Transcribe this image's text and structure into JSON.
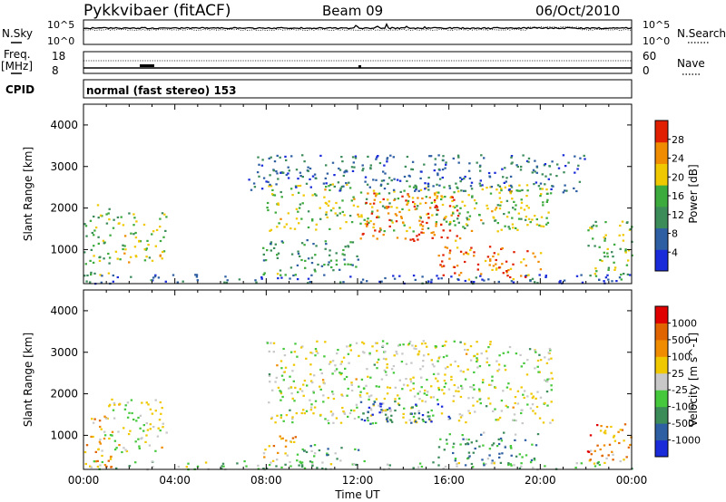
{
  "header": {
    "station": "Pykkvibaer (fitACF)",
    "beam": "Beam 09",
    "date": "06/Oct/2010"
  },
  "strip_noise": {
    "left_label": "N.Sky",
    "right_label": "N.Search",
    "left_ticks": [
      "10^5",
      "10^0"
    ],
    "right_ticks": [
      "10^5",
      "10^0"
    ]
  },
  "strip_freq": {
    "left_label_1": "Freq.",
    "left_label_2": "[MHz]",
    "left_ticks": [
      "18",
      "8"
    ],
    "right_label": "Nave",
    "right_ticks": [
      "60",
      "0"
    ]
  },
  "cpid": {
    "label": "CPID",
    "text": "normal (fast stereo) 153"
  },
  "axes": {
    "ylabel": "Slant Range [km]",
    "xlabel": "Time UT",
    "y_ticks": [
      "1000",
      "2000",
      "3000",
      "4000"
    ],
    "x_ticks": [
      "00:00",
      "04:00",
      "08:00",
      "12:00",
      "16:00",
      "20:00",
      "00:00"
    ]
  },
  "chart_data": [
    {
      "type": "heatmap",
      "variable": "Power",
      "colorbar_label": "Power [dB]",
      "colorbar_ticks": [
        "4",
        "8",
        "12",
        "16",
        "20",
        "24",
        "28"
      ],
      "colors": [
        "#1a2bd9",
        "#2e5fa3",
        "#3c8c5a",
        "#3caa3c",
        "#f0c800",
        "#f08c00",
        "#e02000"
      ],
      "xlim_hours": [
        0,
        24
      ],
      "ylim_km": [
        180,
        4500
      ],
      "regions": [
        {
          "t0": 0.0,
          "t1": 1.2,
          "r0": 250,
          "r1": 2100,
          "level": 0.45
        },
        {
          "t0": 1.2,
          "t1": 3.6,
          "r0": 700,
          "r1": 1900,
          "level": 0.55
        },
        {
          "t0": 0.2,
          "t1": 24.0,
          "r0": 200,
          "r1": 420,
          "level": 0.2
        },
        {
          "t0": 7.8,
          "t1": 12.0,
          "r0": 380,
          "r1": 1250,
          "level": 0.4
        },
        {
          "t0": 8.0,
          "t1": 20.5,
          "r0": 1450,
          "r1": 2600,
          "level": 0.55
        },
        {
          "t0": 12.0,
          "t1": 16.5,
          "r0": 1200,
          "r1": 2400,
          "level": 0.85
        },
        {
          "t0": 15.5,
          "t1": 20.0,
          "r0": 300,
          "r1": 1100,
          "level": 0.8
        },
        {
          "t0": 7.2,
          "t1": 22.0,
          "r0": 2400,
          "r1": 3300,
          "level": 0.25
        },
        {
          "t0": 22.0,
          "t1": 24.0,
          "r0": 300,
          "r1": 1700,
          "level": 0.5
        }
      ]
    },
    {
      "type": "heatmap",
      "variable": "Velocity",
      "colorbar_label": "Velocity [m s^-1]",
      "colorbar_ticks": [
        "1000",
        "500",
        "100",
        "25",
        "-25",
        "-100",
        "-500",
        "-1000"
      ],
      "colors": [
        "#1a2bd9",
        "#2e5fa3",
        "#3c8c5a",
        "#46c83c",
        "#c8c8c8",
        "#f0c800",
        "#f08c00",
        "#e06400",
        "#e00000"
      ],
      "xlim_hours": [
        0,
        24
      ],
      "ylim_km": [
        180,
        4500
      ],
      "regions": [
        {
          "t0": 0.0,
          "t1": 1.3,
          "r0": 250,
          "r1": 1500,
          "level": 0.7
        },
        {
          "t0": 0.8,
          "t1": 3.6,
          "r0": 600,
          "r1": 1900,
          "level": 0.5
        },
        {
          "t0": 0.2,
          "t1": 24.0,
          "r0": 200,
          "r1": 400,
          "level": 0.4
        },
        {
          "t0": 7.8,
          "t1": 9.3,
          "r0": 350,
          "r1": 1000,
          "level": 0.65
        },
        {
          "t0": 9.3,
          "t1": 12.0,
          "r0": 350,
          "r1": 800,
          "level": 0.35
        },
        {
          "t0": 8.0,
          "t1": 20.5,
          "r0": 1300,
          "r1": 3300,
          "level": 0.5
        },
        {
          "t0": 12.0,
          "t1": 16.0,
          "r0": 1300,
          "r1": 1900,
          "level": 0.15
        },
        {
          "t0": 15.5,
          "t1": 20.0,
          "r0": 300,
          "r1": 1100,
          "level": 0.3
        },
        {
          "t0": 22.0,
          "t1": 24.0,
          "r0": 300,
          "r1": 1300,
          "level": 0.72
        }
      ]
    }
  ]
}
